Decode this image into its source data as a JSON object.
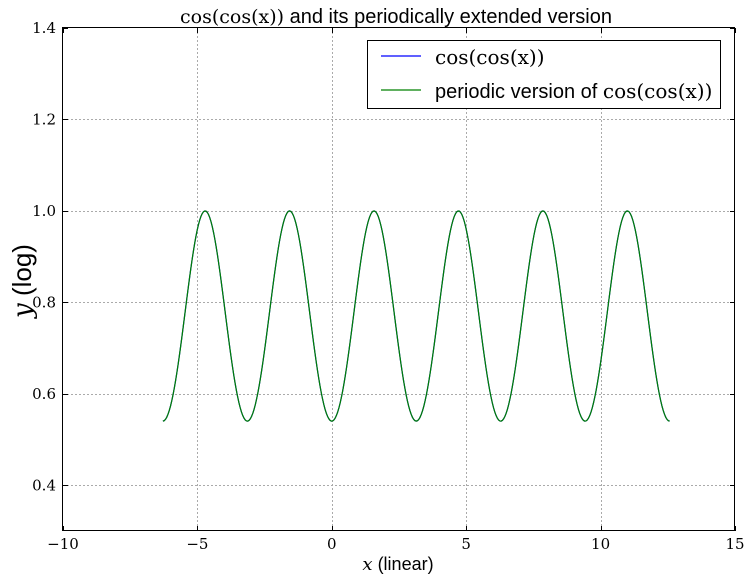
{
  "chart_data": {
    "type": "line",
    "title": {
      "math": "cos(cos(x))",
      "text": " and its periodically extended version"
    },
    "xlabel": {
      "var": "x",
      "text": " (linear)"
    },
    "ylabel": {
      "var": "y",
      "text": " (log)"
    },
    "xlim": [
      -10,
      15
    ],
    "ylim": [
      0.3,
      1.4
    ],
    "grid": true,
    "legend_position": "top-right",
    "x_ticks": [
      -10,
      -5,
      0,
      5,
      10,
      15
    ],
    "x_tick_labels": [
      "−10",
      "−5",
      "0",
      "5",
      "10",
      "15"
    ],
    "y_ticks": [
      0.4,
      0.6,
      0.8,
      1.0,
      1.2,
      1.4
    ],
    "y_tick_labels": [
      "0.4",
      "0.6",
      "0.8",
      "1.0",
      "1.2",
      "1.4"
    ],
    "series": [
      {
        "name": "cos(cos(x))",
        "legend": {
          "text": "",
          "math": "cos(cos(x))"
        },
        "color": "#0000ff",
        "function": "cos(cos(x))",
        "x_range": [
          -6.2832,
          12.5664
        ],
        "samples": 400
      },
      {
        "name": "periodic version of cos(cos(x))",
        "legend": {
          "text": "periodic version of ",
          "math": "cos(cos(x))"
        },
        "color": "#008000",
        "function": "cos(cos(x mod 2π))",
        "x_range": [
          -6.2832,
          12.5664
        ],
        "samples": 400
      }
    ]
  }
}
